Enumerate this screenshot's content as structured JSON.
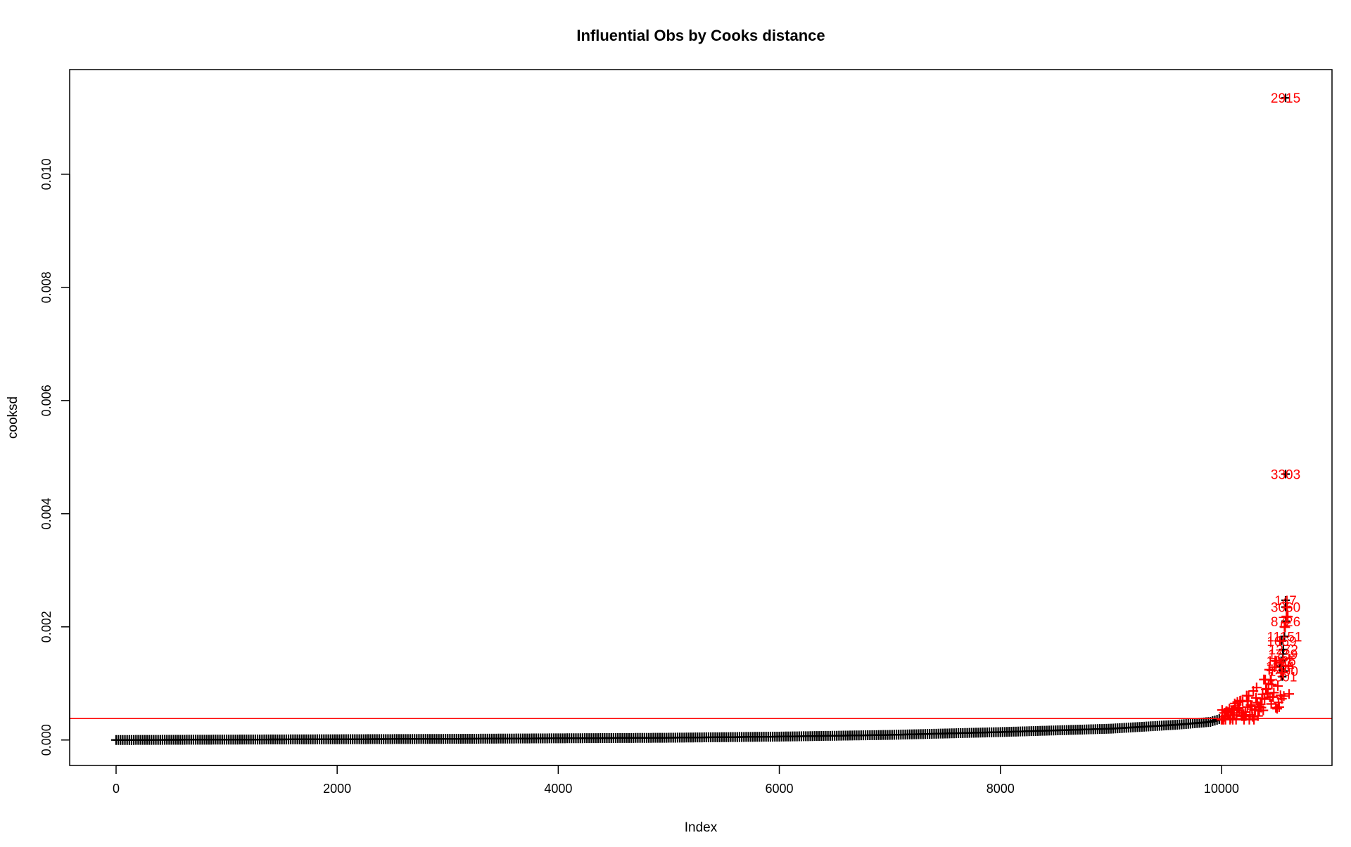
{
  "chart_data": {
    "type": "scatter",
    "title": "Influential Obs by Cooks distance",
    "xlabel": "Index",
    "ylabel": "cooksd",
    "xlim": [
      -420,
      11000
    ],
    "ylim": [
      -0.00045,
      0.01185
    ],
    "xticks": [
      0,
      2000,
      4000,
      6000,
      8000,
      10000
    ],
    "xtick_labels": [
      "0",
      "2000",
      "4000",
      "6000",
      "8000",
      "10000"
    ],
    "yticks": [
      0.0,
      0.002,
      0.004,
      0.006,
      0.008,
      0.01
    ],
    "ytick_labels": [
      "0.000",
      "0.002",
      "0.004",
      "0.006",
      "0.008",
      "0.010"
    ],
    "n_obs": 10620,
    "threshold": 0.00038,
    "threshold_color": "#ff0000",
    "point_color": "#000000",
    "marker": "plus",
    "grid": false,
    "legend": "none",
    "curve_points": [
      {
        "x": 0,
        "y": 0.0
      },
      {
        "x": 3000,
        "y": 2e-05
      },
      {
        "x": 5000,
        "y": 4e-05
      },
      {
        "x": 6000,
        "y": 6e-05
      },
      {
        "x": 7000,
        "y": 9e-05
      },
      {
        "x": 8000,
        "y": 0.00014
      },
      {
        "x": 9000,
        "y": 0.0002
      },
      {
        "x": 9600,
        "y": 0.00027
      },
      {
        "x": 9900,
        "y": 0.00032
      },
      {
        "x": 10000,
        "y": 0.00038
      },
      {
        "x": 10200,
        "y": 0.00047
      },
      {
        "x": 10350,
        "y": 0.00058
      },
      {
        "x": 10450,
        "y": 0.00072
      },
      {
        "x": 10530,
        "y": 0.0009
      },
      {
        "x": 10580,
        "y": 0.0011
      },
      {
        "x": 10610,
        "y": 0.0014
      },
      {
        "x": 10620,
        "y": 0.0016
      }
    ],
    "labeled_points": [
      {
        "label": "2915",
        "x": 10580,
        "y": 0.01135
      },
      {
        "label": "3303",
        "x": 10580,
        "y": 0.0047
      },
      {
        "label": "147",
        "x": 10580,
        "y": 0.00247
      },
      {
        "label": "3060",
        "x": 10580,
        "y": 0.00235
      },
      {
        "label": "8726",
        "x": 10580,
        "y": 0.0021
      },
      {
        "label": "11151",
        "x": 10570,
        "y": 0.00183
      },
      {
        "label": "1069",
        "x": 10545,
        "y": 0.00175
      },
      {
        "label": "1272",
        "x": 10560,
        "y": 0.0016
      },
      {
        "label": "1739",
        "x": 10555,
        "y": 0.00152
      },
      {
        "label": "1025",
        "x": 10540,
        "y": 0.0014
      },
      {
        "label": "1184",
        "x": 10530,
        "y": 0.0013
      },
      {
        "label": "1490",
        "x": 10560,
        "y": 0.00122
      },
      {
        "label": "1301",
        "x": 10550,
        "y": 0.00112
      }
    ]
  }
}
